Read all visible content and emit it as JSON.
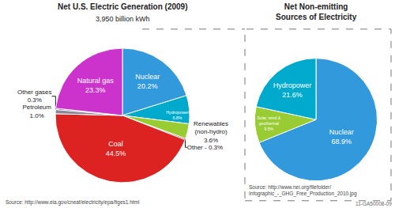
{
  "chart_data": [
    {
      "type": "pie",
      "title": "Net U.S. Electric Generation (2009)",
      "subtitle": "3,950 billion kWh",
      "values": [
        20.2,
        6.8,
        3.6,
        0.3,
        44.5,
        1.0,
        0.3,
        23.3
      ],
      "value_labels": [
        "Nuclear\n20.2%",
        "Hydropower\n6.8%",
        "Renewables\n(non-hydro)\n3.6%",
        "Other - 0.3%",
        "Coal\n44.5%",
        "Petroleum\n1.0%",
        "Other gases\n0.3%",
        "Natural gas\n23.3%"
      ],
      "colors": [
        "#3399dd",
        "#00aacc",
        "#99cc33",
        "#cc0000",
        "#dd2222",
        "#888899",
        "#6600aa",
        "#cc33cc"
      ],
      "annotations": [
        "Source: http://www.eia.gov/cneaf/electricity/epa/figes1.html"
      ]
    },
    {
      "type": "pie",
      "title": "Net Non-emitting\nSources of Electricity",
      "values": [
        68.9,
        9.5,
        21.6
      ],
      "value_labels": [
        "Nuclear\n68.9%",
        "Solar, wind &\ngeothermal\n9.5%",
        "Hydropower\n21.6%"
      ],
      "colors": [
        "#3399dd",
        "#99cc33",
        "#00aacc"
      ],
      "annotations": [
        "Source: http://www.nei.org/filefolder/\nInfographic_-_GHG_Free_Production_2010.jpg",
        "11-GA50008-09"
      ]
    }
  ]
}
